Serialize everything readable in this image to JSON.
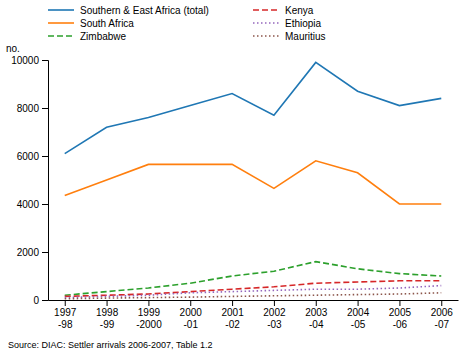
{
  "chart_data": {
    "type": "line",
    "y_label": "no.",
    "annotations": [
      "Source: DIAC: Settler arrivals 2006-2007, Table 1.2"
    ],
    "categories": [
      "1997-98",
      "1998-99",
      "1999-2000",
      "2000-01",
      "2001-02",
      "2002-03",
      "2003-04",
      "2004-05",
      "2005-06",
      "2006-07"
    ],
    "series": [
      {
        "name": "Southern & East Africa (total)",
        "line_style": "solid",
        "values": [
          6100,
          7200,
          7600,
          8100,
          8600,
          7700,
          9900,
          8700,
          8100,
          8400
        ]
      },
      {
        "name": "South Africa",
        "line_style": "solid",
        "values": [
          4350,
          5000,
          5650,
          5650,
          5650,
          4650,
          5800,
          5300,
          4000,
          4000
        ]
      },
      {
        "name": "Zimbabwe",
        "line_style": "dashed",
        "values": [
          200,
          350,
          500,
          700,
          1000,
          1200,
          1600,
          1300,
          1100,
          1000
        ]
      },
      {
        "name": "Kenya",
        "line_style": "dashed",
        "values": [
          150,
          200,
          250,
          350,
          450,
          550,
          700,
          750,
          800,
          800
        ]
      },
      {
        "name": "Ethiopia",
        "line_style": "dotted",
        "values": [
          100,
          150,
          200,
          300,
          350,
          400,
          450,
          450,
          500,
          600
        ]
      },
      {
        "name": "Mauritius",
        "line_style": "dotted",
        "values": [
          50,
          80,
          100,
          120,
          150,
          175,
          200,
          225,
          250,
          300
        ]
      }
    ],
    "ylim": [
      0,
      10000
    ],
    "yticks": [
      0,
      2000,
      4000,
      6000,
      8000,
      10000
    ],
    "grid": false,
    "legend": "top"
  }
}
